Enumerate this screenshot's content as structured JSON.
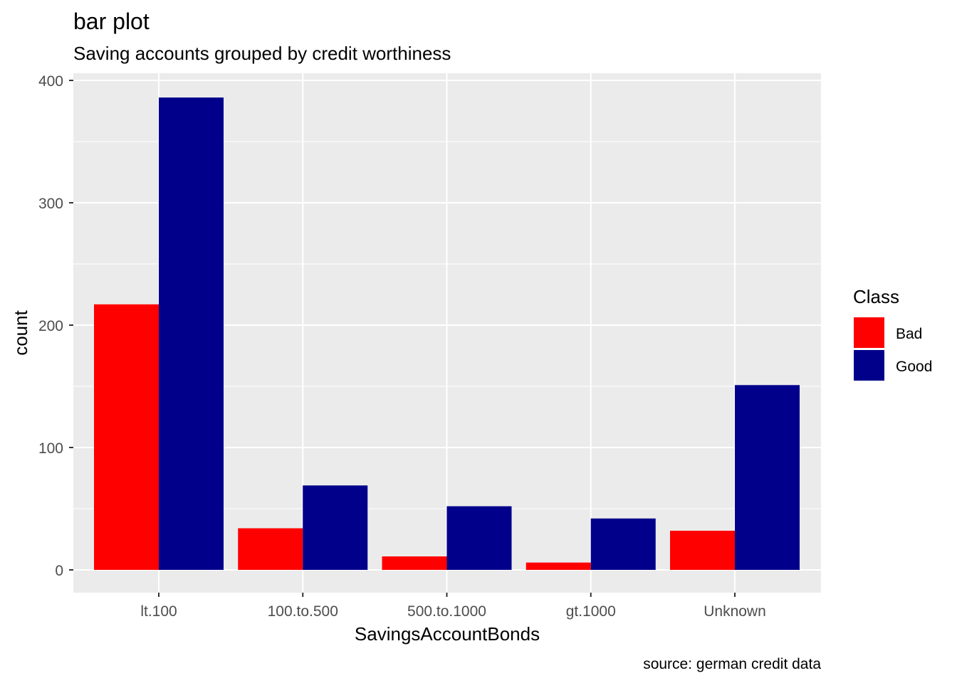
{
  "chart_data": {
    "type": "bar",
    "title": "bar plot",
    "subtitle": "Saving accounts grouped by credit worthiness",
    "caption": "source: german credit data",
    "xlabel": "SavingsAccountBonds",
    "ylabel": "count",
    "categories": [
      "lt.100",
      "100.to.500",
      "500.to.1000",
      "gt.1000",
      "Unknown"
    ],
    "series": [
      {
        "name": "Bad",
        "color": "#FF0000",
        "values": [
          217,
          34,
          11,
          6,
          32
        ]
      },
      {
        "name": "Good",
        "color": "#00008B",
        "values": [
          386,
          69,
          52,
          42,
          151
        ]
      }
    ],
    "ylim": [
      0,
      400
    ],
    "yticks": [
      0,
      100,
      200,
      300,
      400
    ],
    "ytick_labels": [
      "0",
      "100",
      "200",
      "300",
      "400"
    ],
    "grid": true,
    "legend": {
      "title": "Class",
      "placement": "right"
    }
  }
}
